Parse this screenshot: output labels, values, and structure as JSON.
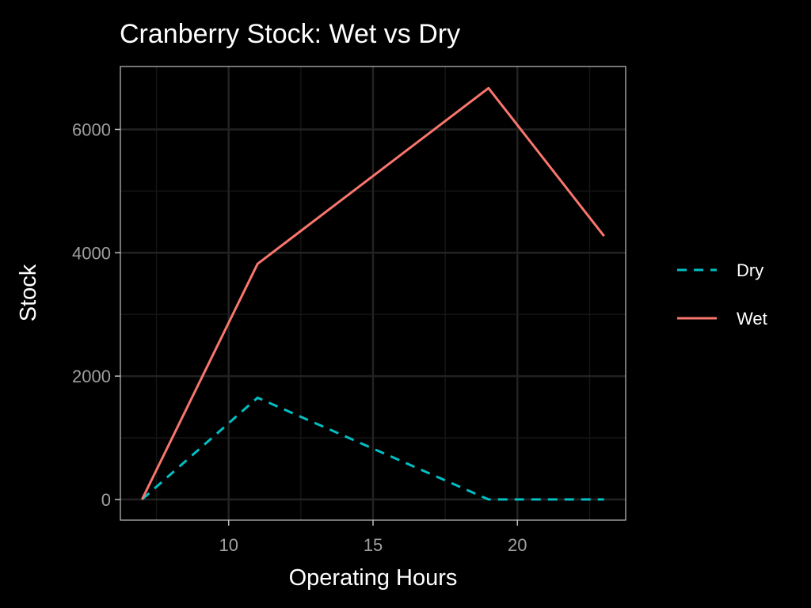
{
  "colors": {
    "background": "#000000",
    "panel_border": "#c0c0c0",
    "grid_major": "#222222",
    "grid_minor": "#151515",
    "tick_label": "#a0a0a0",
    "text": "#ffffff"
  },
  "chart_data": {
    "type": "line",
    "title": "Cranberry Stock: Wet vs Dry",
    "xlabel": "Operating Hours",
    "ylabel": "Stock",
    "xlim": [
      6.25,
      23.75
    ],
    "ylim": [
      -335,
      7020
    ],
    "x_ticks": [
      10,
      15,
      20
    ],
    "x_tick_labels": [
      "10",
      "15",
      "20"
    ],
    "x_minor_ticks": [
      7.5,
      12.5,
      17.5,
      22.5
    ],
    "y_ticks": [
      0,
      2000,
      4000,
      6000
    ],
    "y_tick_labels": [
      "0",
      "2000",
      "4000",
      "6000"
    ],
    "y_minor_ticks": [
      1000,
      3000,
      5000
    ],
    "grid": true,
    "legend_position": "right",
    "series": [
      {
        "name": "Dry",
        "color": "#00bfc4",
        "line_style": "dashed",
        "x": [
          7,
          11,
          19,
          23
        ],
        "y": [
          0,
          1650,
          0,
          0
        ]
      },
      {
        "name": "Wet",
        "color": "#f8766d",
        "line_style": "solid",
        "x": [
          7,
          11,
          19,
          23
        ],
        "y": [
          0,
          3820,
          6670,
          4270
        ]
      }
    ]
  }
}
